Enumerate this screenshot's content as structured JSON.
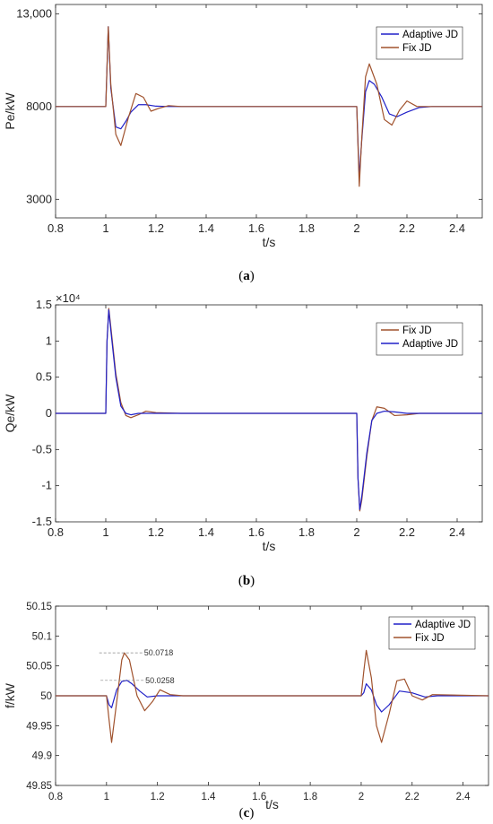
{
  "chart_data": [
    {
      "type": "line",
      "caption": "a",
      "xlabel": "t/s",
      "ylabel": "Pe/kW",
      "xlim": [
        0.8,
        2.5
      ],
      "ylim": [
        2000,
        13500
      ],
      "xticks": [
        "0.8",
        "1",
        "1.2",
        "1.4",
        "1.6",
        "1.8",
        "2",
        "2.2",
        "2.4"
      ],
      "yticks": [
        "3000",
        "8000",
        "13,000"
      ],
      "ytick_values": [
        3000,
        8000,
        13000
      ],
      "legend_position": "top-right",
      "grid": false,
      "series": [
        {
          "name": "Adaptive JD",
          "color": "#2020c8",
          "x": [
            0.8,
            1.0,
            1.01,
            1.02,
            1.04,
            1.06,
            1.08,
            1.1,
            1.13,
            1.16,
            1.2,
            1.25,
            1.3,
            2.0,
            2.01,
            2.02,
            2.035,
            2.05,
            2.07,
            2.1,
            2.13,
            2.16,
            2.2,
            2.25,
            2.3,
            2.5
          ],
          "y": [
            8000,
            8000,
            12300,
            9000,
            6900,
            6800,
            7200,
            7700,
            8100,
            8100,
            8020,
            8000,
            8000,
            8000,
            4200,
            6200,
            8800,
            9400,
            9200,
            8500,
            7600,
            7450,
            7700,
            7950,
            8000,
            8000
          ]
        },
        {
          "name": "Fix JD",
          "color": "#a0522d",
          "x": [
            0.8,
            1.0,
            1.01,
            1.02,
            1.04,
            1.06,
            1.09,
            1.12,
            1.15,
            1.18,
            1.21,
            1.25,
            1.3,
            2.0,
            2.01,
            2.02,
            2.035,
            2.05,
            2.08,
            2.11,
            2.14,
            2.17,
            2.2,
            2.24,
            2.28,
            2.5
          ],
          "y": [
            8000,
            8000,
            12300,
            9200,
            6500,
            5900,
            7400,
            8700,
            8500,
            7750,
            7900,
            8050,
            8000,
            8000,
            3700,
            6300,
            9600,
            10300,
            9200,
            7300,
            7000,
            7800,
            8300,
            8000,
            8000,
            8000
          ]
        }
      ]
    },
    {
      "type": "line",
      "caption": "b",
      "xlabel": "t/s",
      "ylabel": "Qe/kW",
      "multiplier": "×10⁴",
      "xlim": [
        0.8,
        2.5
      ],
      "ylim": [
        -1.5,
        1.5
      ],
      "xticks": [
        "0.8",
        "1",
        "1.2",
        "1.4",
        "1.6",
        "1.8",
        "2",
        "2.2",
        "2.4"
      ],
      "yticks": [
        "-1.5",
        "-1",
        "-0.5",
        "0",
        "0.5",
        "1",
        "1.5"
      ],
      "legend_position": "top-right",
      "grid": false,
      "series": [
        {
          "name": "Fix JD",
          "color": "#a0522d",
          "x": [
            0.8,
            1.0,
            1.005,
            1.012,
            1.02,
            1.04,
            1.06,
            1.08,
            1.1,
            1.13,
            1.16,
            1.2,
            1.3,
            2.0,
            2.005,
            2.012,
            2.02,
            2.04,
            2.06,
            2.08,
            2.11,
            2.15,
            2.2,
            2.25,
            2.5
          ],
          "y": [
            0,
            0,
            1.0,
            1.45,
            1.2,
            0.55,
            0.15,
            -0.03,
            -0.06,
            -0.02,
            0.03,
            0.01,
            0,
            0,
            -0.9,
            -1.35,
            -1.2,
            -0.6,
            -0.1,
            0.09,
            0.07,
            -0.03,
            -0.02,
            0,
            0
          ]
        },
        {
          "name": "Adaptive JD",
          "color": "#2020c8",
          "x": [
            0.8,
            1.0,
            1.005,
            1.012,
            1.02,
            1.04,
            1.06,
            1.08,
            1.1,
            1.13,
            1.16,
            1.2,
            1.3,
            2.0,
            2.005,
            2.012,
            2.02,
            2.04,
            2.06,
            2.08,
            2.11,
            2.15,
            2.2,
            2.25,
            2.5
          ],
          "y": [
            0,
            0,
            1.0,
            1.43,
            1.15,
            0.5,
            0.1,
            0.0,
            -0.02,
            0.0,
            0.0,
            0.0,
            0,
            0,
            -0.9,
            -1.33,
            -1.15,
            -0.55,
            -0.1,
            0.0,
            0.03,
            0.02,
            0.0,
            0,
            0
          ]
        }
      ]
    },
    {
      "type": "line",
      "caption": "c",
      "xlabel": "t/s",
      "ylabel": "f/kW",
      "xlim": [
        0.8,
        2.5
      ],
      "ylim": [
        49.85,
        50.15
      ],
      "xticks": [
        "0.8",
        "1",
        "1.2",
        "1.4",
        "1.6",
        "1.8",
        "2",
        "2.2",
        "2.4"
      ],
      "yticks": [
        "49.85",
        "49.9",
        "49.95",
        "50",
        "50.05",
        "50.1",
        "50.15"
      ],
      "legend_position": "top-right",
      "grid": false,
      "annotations": [
        {
          "label": "50.0718",
          "x": 1.07,
          "y": 50.0718
        },
        {
          "label": "50.0258",
          "x": 1.075,
          "y": 50.0258
        }
      ],
      "series": [
        {
          "name": "Adaptive JD",
          "color": "#2020c8",
          "x": [
            0.8,
            1.0,
            1.01,
            1.02,
            1.04,
            1.06,
            1.08,
            1.1,
            1.13,
            1.16,
            1.2,
            1.25,
            1.3,
            2.0,
            2.01,
            2.02,
            2.04,
            2.06,
            2.08,
            2.11,
            2.15,
            2.2,
            2.25,
            2.3,
            2.5
          ],
          "y": [
            50,
            50,
            49.985,
            49.98,
            50.01,
            50.024,
            50.0258,
            50.02,
            50.008,
            49.998,
            50.0,
            50.0,
            50,
            50,
            50.005,
            50.02,
            50.01,
            49.985,
            49.973,
            49.985,
            50.008,
            50.005,
            49.998,
            50.0,
            50
          ]
        },
        {
          "name": "Fix JD",
          "color": "#a0522d",
          "x": [
            0.8,
            1.0,
            1.01,
            1.02,
            1.04,
            1.06,
            1.07,
            1.09,
            1.12,
            1.15,
            1.18,
            1.21,
            1.25,
            1.3,
            2.0,
            2.01,
            2.02,
            2.04,
            2.06,
            2.08,
            2.11,
            2.14,
            2.17,
            2.2,
            2.24,
            2.28,
            2.5
          ],
          "y": [
            50,
            50,
            49.96,
            49.922,
            49.99,
            50.06,
            50.0718,
            50.06,
            50.0,
            49.975,
            49.99,
            50.01,
            50.002,
            50,
            50,
            50.04,
            50.076,
            50.03,
            49.95,
            49.922,
            49.97,
            50.025,
            50.028,
            50.0,
            49.993,
            50.002,
            50
          ]
        }
      ]
    }
  ]
}
